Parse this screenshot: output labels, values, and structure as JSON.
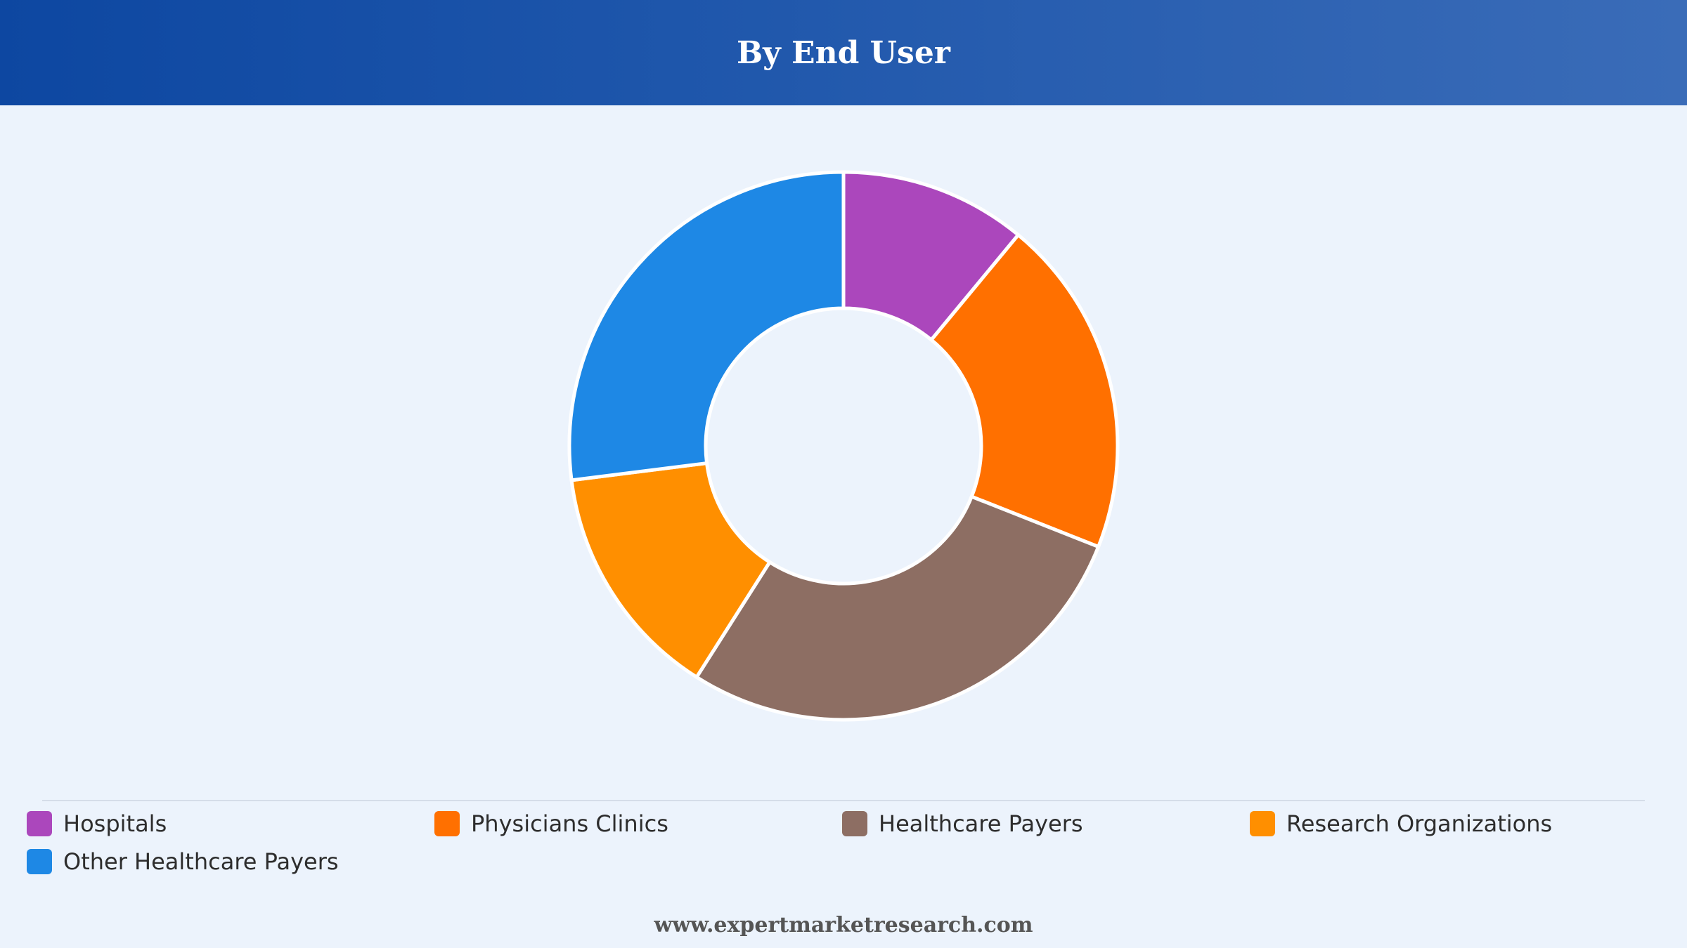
{
  "header": {
    "title": "By End User"
  },
  "chart_data": {
    "type": "pie",
    "variant": "donut",
    "title": "By End User",
    "categories": [
      "Hospitals",
      "Physicians Clinics",
      "Healthcare Payers",
      "Research Organizations",
      "Other Healthcare Payers"
    ],
    "values": [
      11,
      20,
      28,
      14,
      27
    ],
    "unit": "%",
    "colors": [
      "#ab47bc",
      "#ff7000",
      "#8d6e63",
      "#ff8f00",
      "#1e88e5"
    ],
    "legend_position": "bottom",
    "data_labels": false
  },
  "footer": {
    "website": "www.expertmarketresearch.com"
  }
}
